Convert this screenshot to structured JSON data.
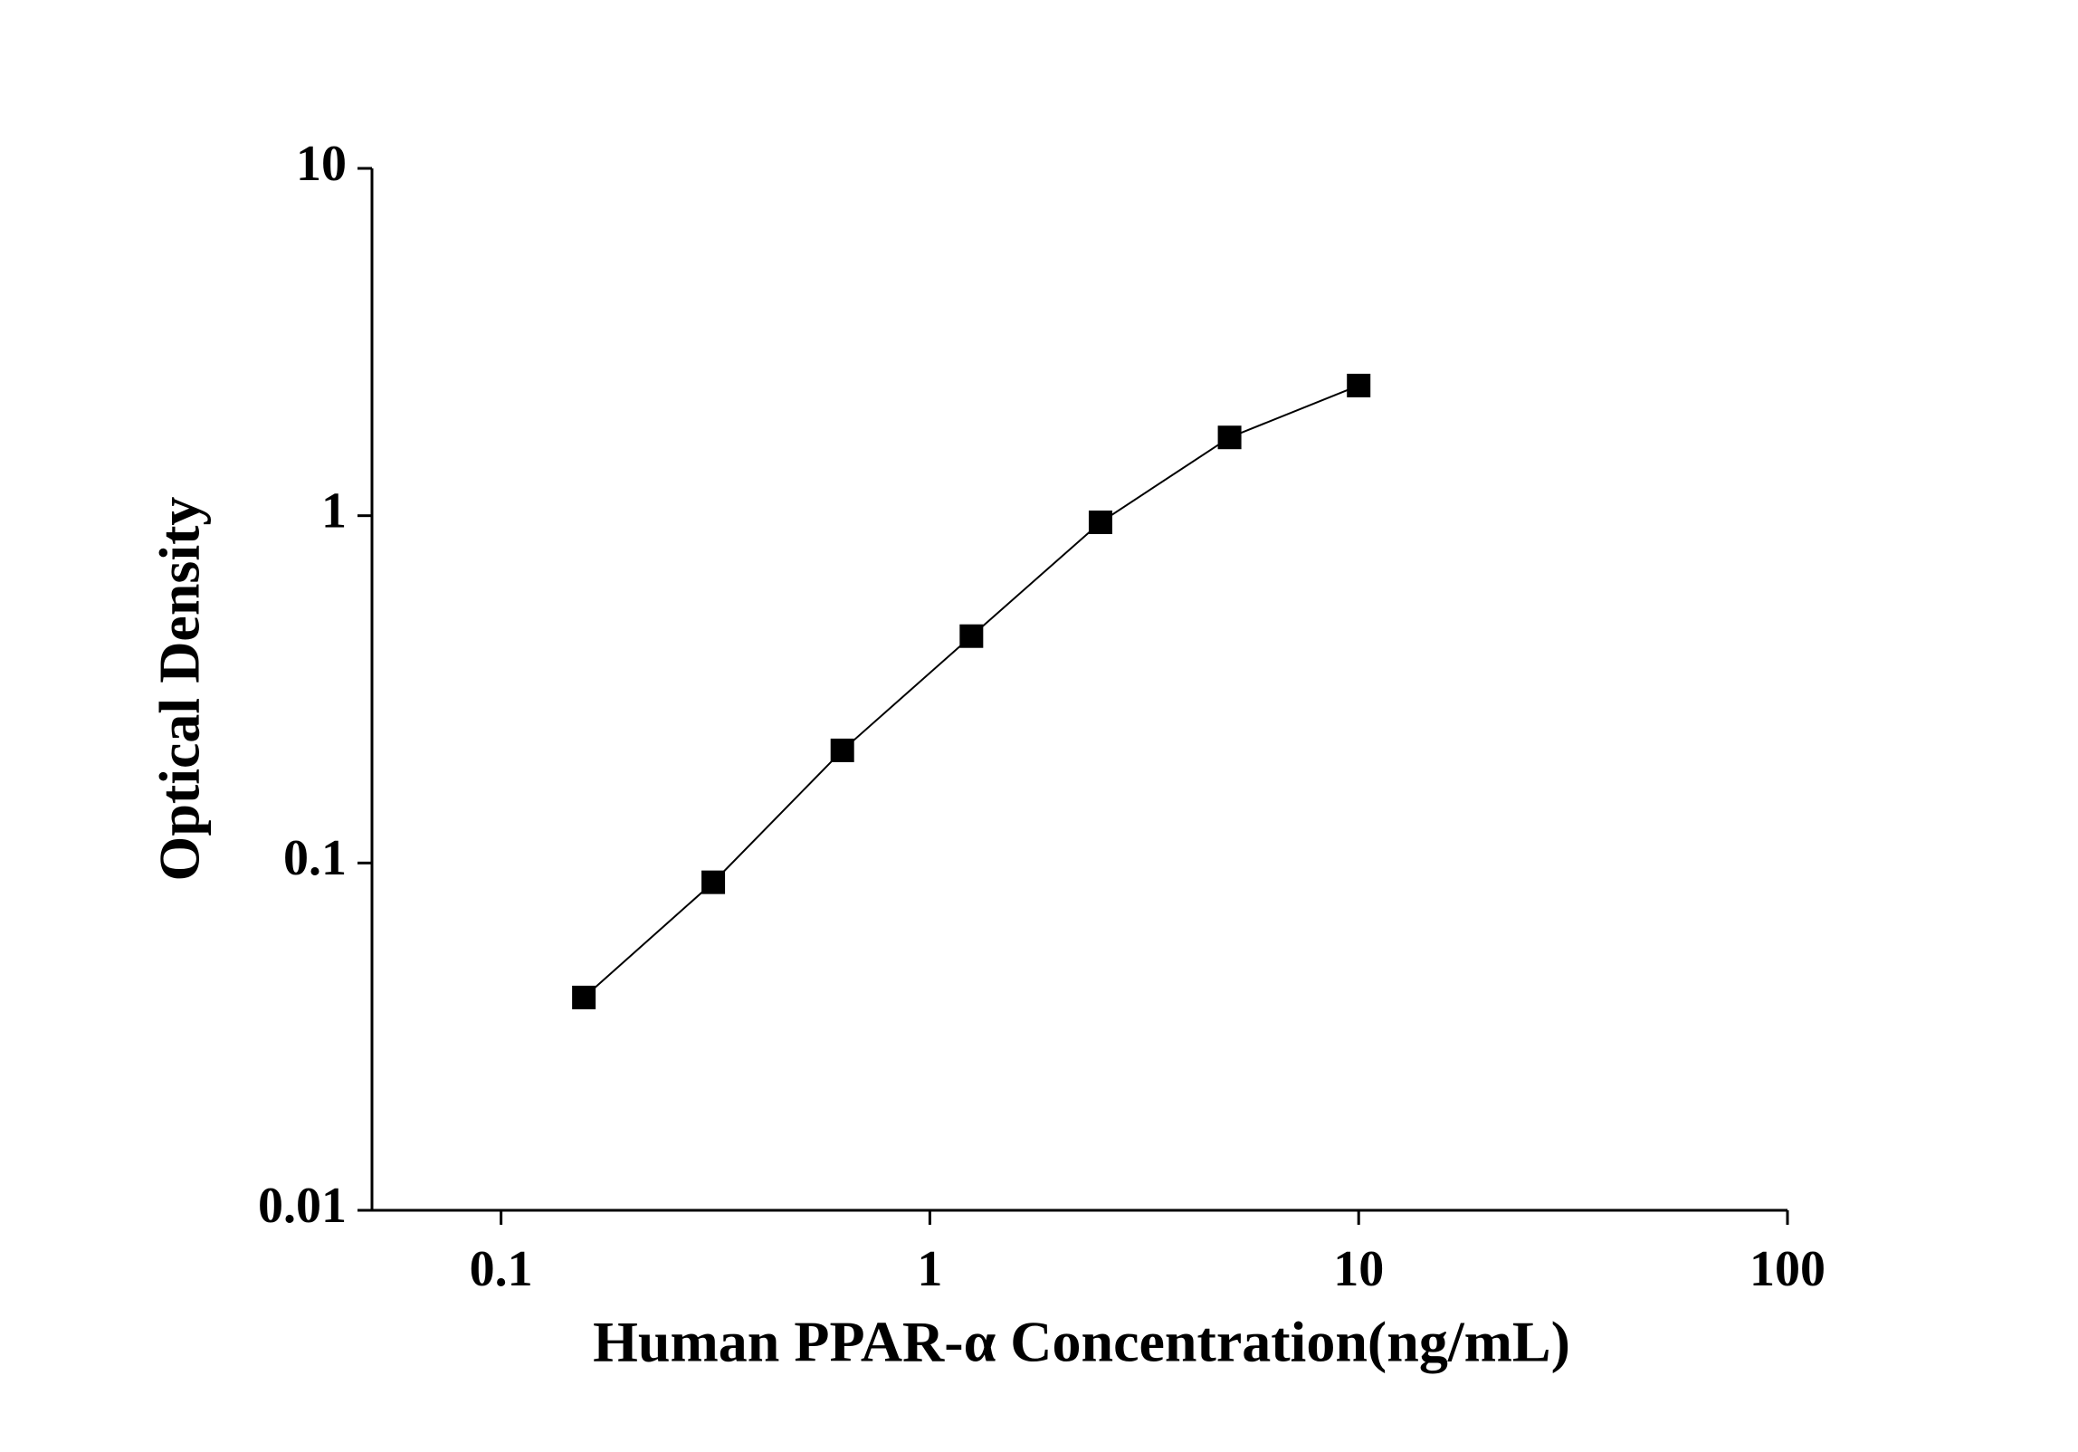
{
  "chart_data": {
    "type": "line",
    "x_label": "Human PPAR-α Concentration(ng/mL)",
    "y_label": "Optical Density",
    "x": [
      0.156,
      0.3125,
      0.625,
      1.25,
      2.5,
      5,
      10
    ],
    "series": [
      {
        "color": "#000000",
        "values": [
          0.041,
          0.088,
          0.211,
          0.45,
          0.957,
          1.68,
          2.37
        ]
      }
    ],
    "xscale": "log",
    "yscale": "log",
    "xlim": [
      0.05,
      100
    ],
    "ylim": [
      0.01,
      10
    ],
    "xticks": [
      0.1,
      1,
      10,
      100
    ],
    "yticks": [
      0.01,
      0.1,
      1,
      10
    ],
    "grid": false
  }
}
